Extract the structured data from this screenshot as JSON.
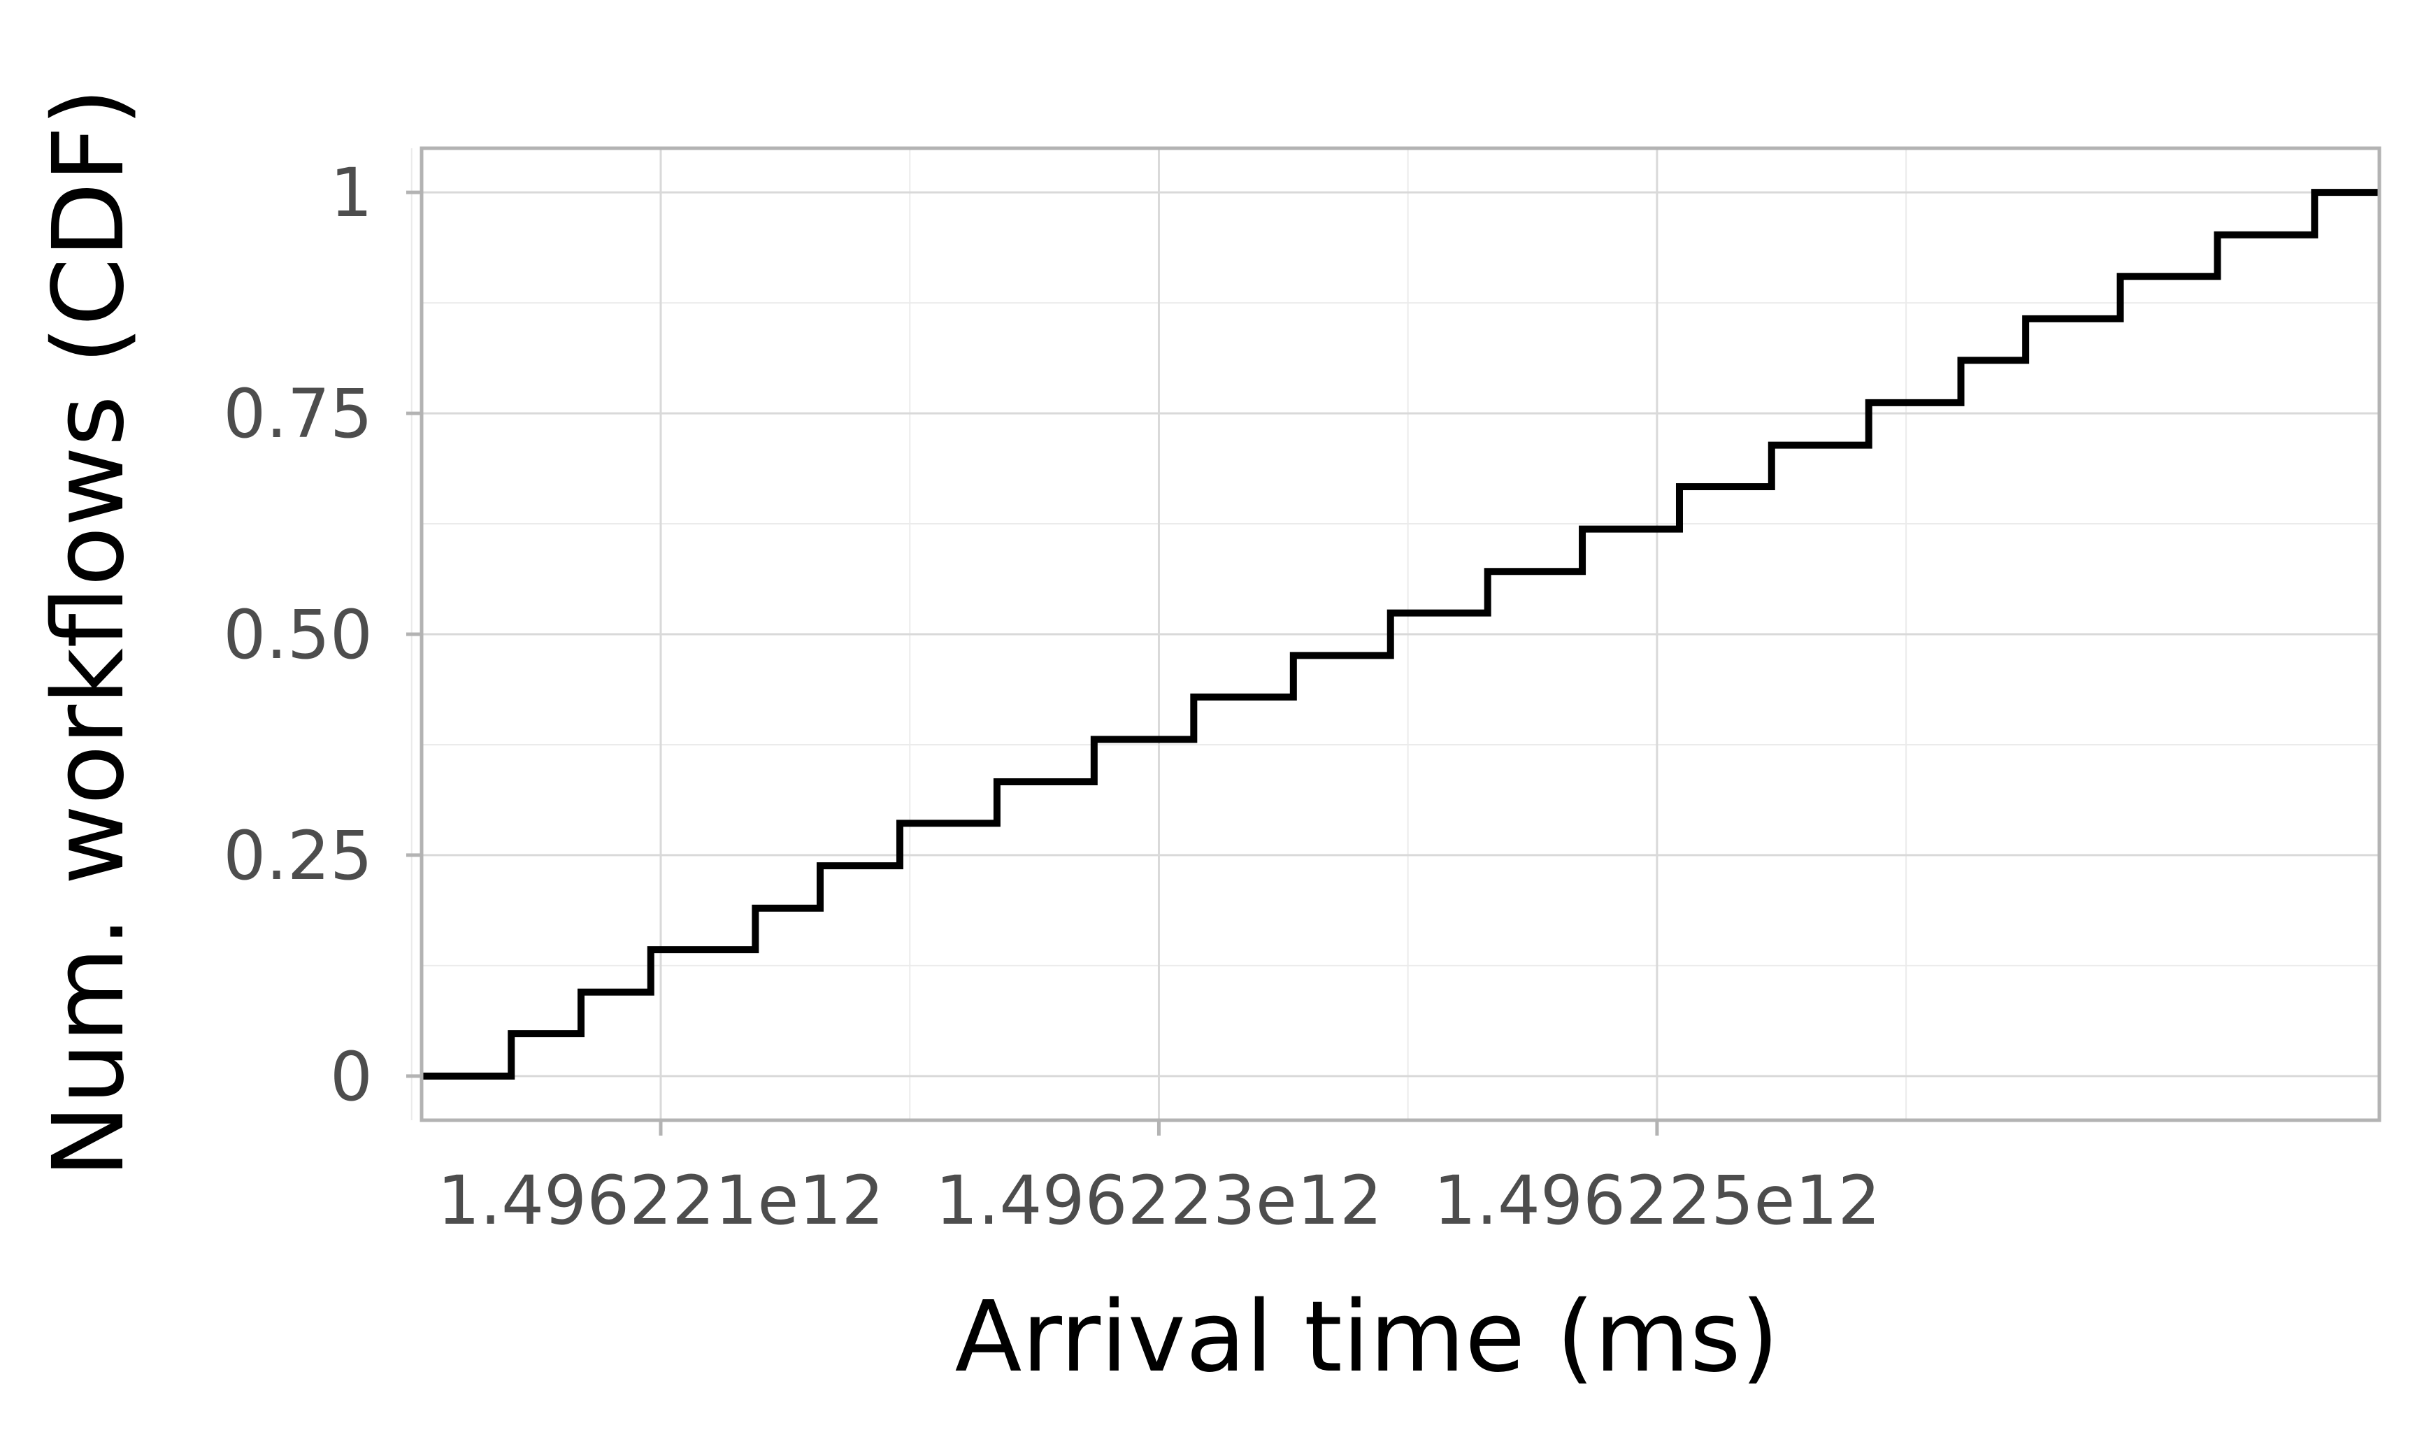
{
  "chart_data": {
    "type": "line",
    "step": true,
    "title": "",
    "xlabel": "Arrival time (ms)",
    "ylabel": "Num. workflows (CDF)",
    "xlim": [
      1496220040000,
      1496227900000
    ],
    "ylim": [
      -0.05,
      1.05
    ],
    "x_ticks": [
      {
        "value": 1496221000000,
        "label": "1.496221e12"
      },
      {
        "value": 1496223000000,
        "label": "1.496223e12"
      },
      {
        "value": 1496225000000,
        "label": "1.496225e12"
      }
    ],
    "x_minor_ticks": [
      1496220000000,
      1496222000000,
      1496224000000,
      1496226000000
    ],
    "y_ticks": [
      {
        "value": 0,
        "label": "0"
      },
      {
        "value": 0.25,
        "label": "0.25"
      },
      {
        "value": 0.5,
        "label": "0.50"
      },
      {
        "value": 0.75,
        "label": "0.75"
      },
      {
        "value": 1,
        "label": "1"
      }
    ],
    "y_minor_ticks": [
      0.125,
      0.375,
      0.625,
      0.875
    ],
    "grid": true,
    "series": [
      {
        "x": [
          1496220040000,
          1496220400000,
          1496220680000,
          1496220960000,
          1496221380000,
          1496221640000,
          1496221960000,
          1496222350000,
          1496222740000,
          1496223140000,
          1496223540000,
          1496223930000,
          1496224320000,
          1496224700000,
          1496225090000,
          1496225460000,
          1496225850000,
          1496226220000,
          1496226480000,
          1496226860000,
          1496227250000,
          1496227640000,
          1496227900000
        ],
        "y": [
          0,
          0.048,
          0.095,
          0.143,
          0.19,
          0.238,
          0.286,
          0.333,
          0.381,
          0.429,
          0.476,
          0.524,
          0.571,
          0.619,
          0.667,
          0.714,
          0.762,
          0.81,
          0.857,
          0.905,
          0.952,
          1.0,
          1.0
        ],
        "color": "#000000"
      }
    ]
  }
}
